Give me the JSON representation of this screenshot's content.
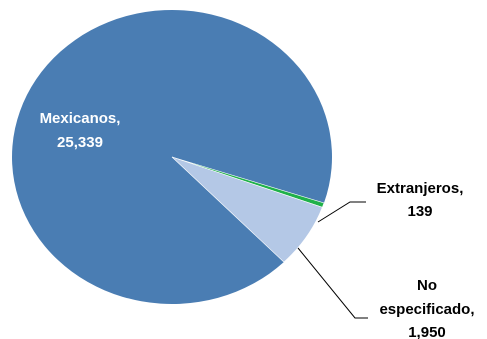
{
  "chart_data": {
    "type": "pie",
    "title": "",
    "slices": [
      {
        "label": "Mexicanos",
        "value_text": "25,339",
        "value": 25339,
        "color": "#4a7db3"
      },
      {
        "label": "Extranjeros",
        "value_text": "139",
        "value": 139,
        "color": "#1fb14a"
      },
      {
        "label": "No especificado",
        "label_lines": [
          "No",
          "especificado,"
        ],
        "value_text": "1,950",
        "value": 1950,
        "color": "#b4c8e6"
      }
    ],
    "legend": "none",
    "label_colors": {
      "inside": "#ffffff",
      "outside": "#000000"
    }
  }
}
